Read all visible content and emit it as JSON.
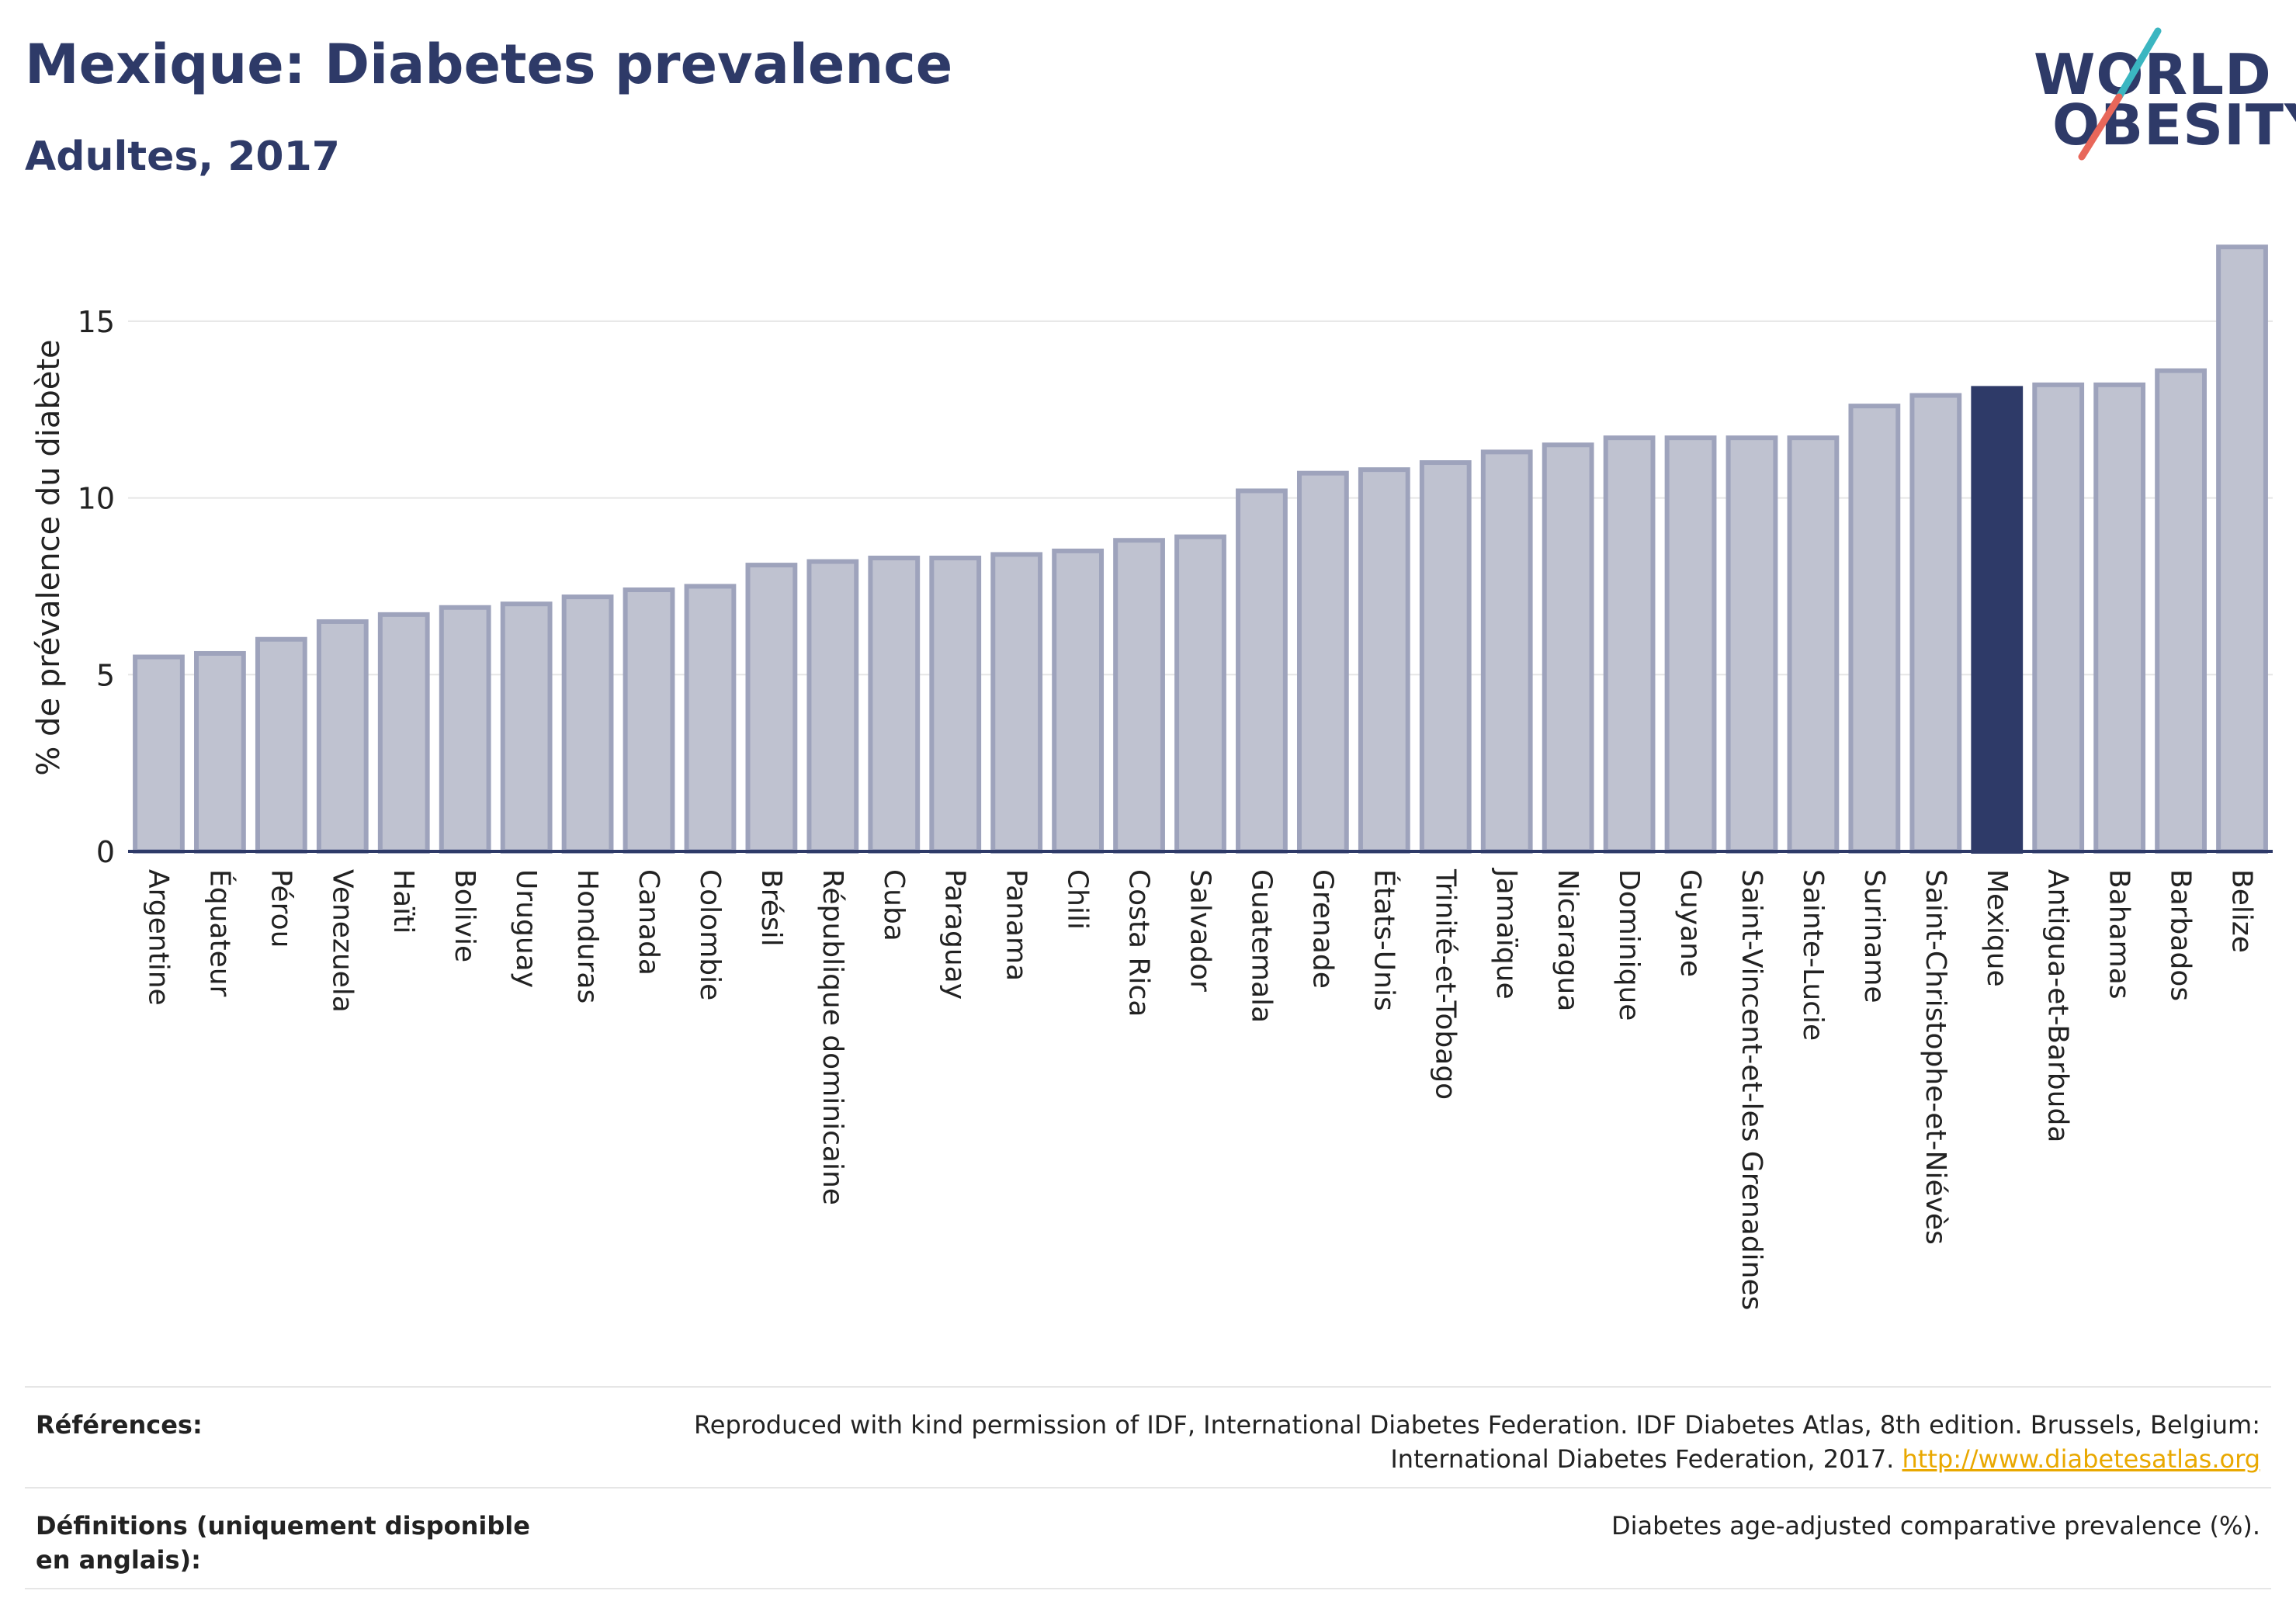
{
  "header": {
    "title": "Mexique: Diabetes prevalence",
    "subtitle": "Adultes, 2017"
  },
  "logo": {
    "line1": "WORLD",
    "line2": "OBESITY",
    "accent_colors": [
      "#3bb6c1",
      "#e8675a"
    ]
  },
  "colors": {
    "bar_fill": "#bfc2d0",
    "bar_stroke": "#9ea3bc",
    "highlight": "#2e3a68",
    "grid": "#e6e6e6",
    "axis": "#2e3a68"
  },
  "chart_data": {
    "type": "bar",
    "ylabel": "% de prévalence du diabète",
    "ylim": [
      0,
      17.5
    ],
    "yticks": [
      0,
      5,
      10,
      15
    ],
    "grid": true,
    "highlight": "Mexique",
    "categories": [
      "Argentine",
      "Équateur",
      "Pérou",
      "Venezuela",
      "Haïti",
      "Bolivie",
      "Uruguay",
      "Honduras",
      "Canada",
      "Colombie",
      "Brésil",
      "République dominicaine",
      "Cuba",
      "Paraguay",
      "Panama",
      "Chili",
      "Costa Rica",
      "Salvador",
      "Guatemala",
      "Grenade",
      "États-Unis",
      "Trinité-et-Tobago",
      "Jamaïque",
      "Nicaragua",
      "Dominique",
      "Guyane",
      "Saint-Vincent-et-les Grenadines",
      "Sainte-Lucie",
      "Suriname",
      "Saint-Christophe-et-Niévès",
      "Mexique",
      "Antigua-et-Barbuda",
      "Bahamas",
      "Barbados",
      "Belize"
    ],
    "values": [
      5.5,
      5.6,
      6.0,
      6.5,
      6.7,
      6.9,
      7.0,
      7.2,
      7.4,
      7.5,
      8.1,
      8.2,
      8.3,
      8.3,
      8.4,
      8.5,
      8.8,
      8.9,
      10.2,
      10.7,
      10.8,
      11.0,
      11.3,
      11.5,
      11.7,
      11.7,
      11.7,
      11.7,
      12.6,
      12.9,
      13.1,
      13.2,
      13.2,
      13.6,
      17.1
    ]
  },
  "footer": {
    "references_label": "Références:",
    "references_text": "Reproduced with kind permission of IDF, International Diabetes Federation. IDF Diabetes Atlas, 8th edition. Brussels, Belgium: International Diabetes Federation, 2017.",
    "references_link": "http://www.diabetesatlas.org",
    "definitions_label": "Définitions (uniquement disponible en anglais):",
    "definitions_text": "Diabetes age-adjusted comparative prevalence (%)."
  }
}
